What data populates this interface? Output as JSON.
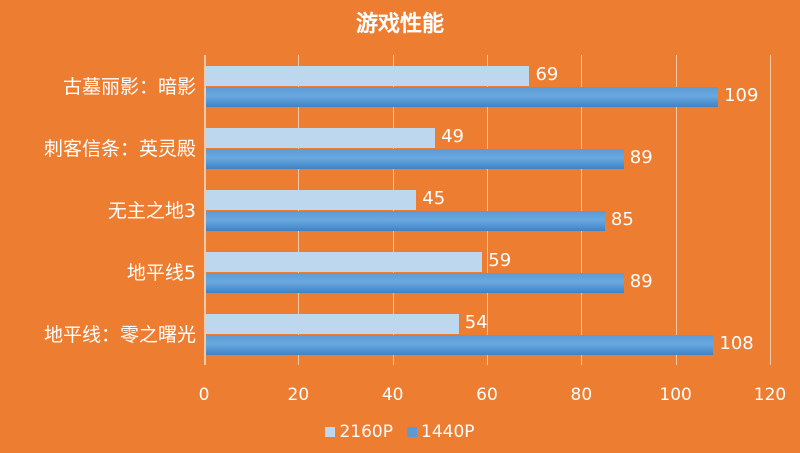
{
  "chart_data": {
    "type": "bar",
    "orientation": "horizontal",
    "title": "游戏性能",
    "categories": [
      "古墓丽影：暗影",
      "刺客信条：英灵殿",
      "无主之地3",
      "地平线5",
      "地平线：零之曙光"
    ],
    "series": [
      {
        "name": "2160P",
        "color": "#BDD7EE",
        "values": [
          69,
          49,
          45,
          59,
          54
        ]
      },
      {
        "name": "1440P",
        "color": "#5B9BD5",
        "values": [
          109,
          89,
          85,
          89,
          108
        ]
      }
    ],
    "xlabel": "",
    "ylabel": "",
    "xlim": [
      0,
      120
    ],
    "xticks": [
      "0",
      "20",
      "40",
      "60",
      "80",
      "100",
      "120"
    ],
    "grid": true,
    "legend_position": "bottom",
    "background": "#ED7D31"
  }
}
